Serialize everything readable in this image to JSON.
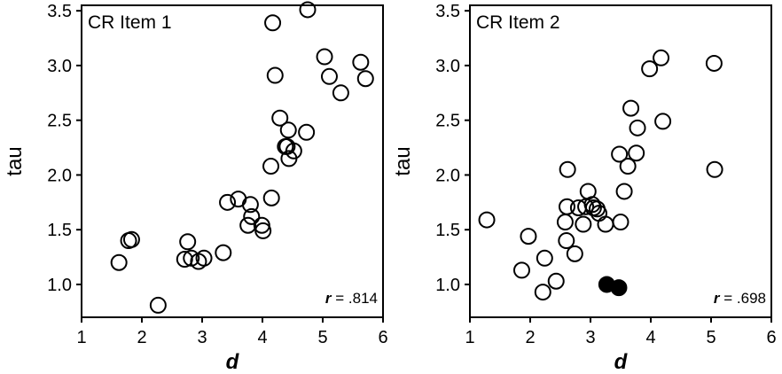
{
  "chart_data": [
    {
      "type": "scatter",
      "title": "CR Item 1",
      "xlabel": "d",
      "ylabel": "tau",
      "xlim": [
        1,
        6
      ],
      "ylim": [
        0.7,
        3.55
      ],
      "xticks": [
        "1",
        "2",
        "3",
        "4",
        "5",
        "6"
      ],
      "yticks": [
        "1.0",
        "1.5",
        "2.0",
        "2.5",
        "3.0",
        "3.5"
      ],
      "xtick_values": [
        1,
        2,
        3,
        4,
        5,
        6
      ],
      "ytick_values": [
        1.0,
        1.5,
        2.0,
        2.5,
        3.0,
        3.5
      ],
      "annotation_symbol": "r",
      "annotation_value": " = .814",
      "point_style": "open circle",
      "series": [
        {
          "points": [
            [
              1.62,
              1.2
            ],
            [
              1.78,
              1.4
            ],
            [
              1.83,
              1.41
            ],
            [
              2.27,
              0.81
            ],
            [
              2.71,
              1.23
            ],
            [
              2.76,
              1.39
            ],
            [
              2.82,
              1.24
            ],
            [
              2.94,
              1.21
            ],
            [
              3.03,
              1.24
            ],
            [
              3.35,
              1.29
            ],
            [
              3.42,
              1.75
            ],
            [
              3.6,
              1.78
            ],
            [
              3.76,
              1.54
            ],
            [
              3.8,
              1.73
            ],
            [
              3.82,
              1.62
            ],
            [
              3.99,
              1.54
            ],
            [
              4.01,
              1.49
            ],
            [
              4.14,
              2.08
            ],
            [
              4.15,
              1.79
            ],
            [
              4.17,
              3.39
            ],
            [
              4.21,
              2.91
            ],
            [
              4.29,
              2.52
            ],
            [
              4.38,
              2.26
            ],
            [
              4.41,
              2.26
            ],
            [
              4.43,
              2.41
            ],
            [
              4.44,
              2.15
            ],
            [
              4.52,
              2.22
            ],
            [
              4.73,
              2.39
            ],
            [
              4.75,
              3.51
            ],
            [
              5.03,
              3.08
            ],
            [
              5.11,
              2.9
            ],
            [
              5.3,
              2.75
            ],
            [
              5.63,
              3.03
            ],
            [
              5.71,
              2.88
            ]
          ],
          "filled": false
        }
      ]
    },
    {
      "type": "scatter",
      "title": "CR Item 2",
      "xlabel": "d",
      "ylabel": "tau",
      "xlim": [
        1,
        6
      ],
      "ylim": [
        0.7,
        3.55
      ],
      "xticks": [
        "1",
        "2",
        "3",
        "4",
        "5",
        "6"
      ],
      "yticks": [
        "1.0",
        "1.5",
        "2.0",
        "2.5",
        "3.0",
        "3.5"
      ],
      "xtick_values": [
        1,
        2,
        3,
        4,
        5,
        6
      ],
      "ytick_values": [
        1.0,
        1.5,
        2.0,
        2.5,
        3.0,
        3.5
      ],
      "annotation_symbol": "r",
      "annotation_value": " = .698",
      "point_style": "open and filled circles",
      "series": [
        {
          "points": [
            [
              1.28,
              1.59
            ],
            [
              1.86,
              1.13
            ],
            [
              1.97,
              1.44
            ],
            [
              2.21,
              0.93
            ],
            [
              2.24,
              1.24
            ],
            [
              2.43,
              1.03
            ],
            [
              2.58,
              1.57
            ],
            [
              2.6,
              1.4
            ],
            [
              2.61,
              1.71
            ],
            [
              2.62,
              2.05
            ],
            [
              2.74,
              1.28
            ],
            [
              2.8,
              1.7
            ],
            [
              2.88,
              1.55
            ],
            [
              2.92,
              1.71
            ],
            [
              2.96,
              1.85
            ],
            [
              3.03,
              1.73
            ],
            [
              3.05,
              1.7
            ],
            [
              3.11,
              1.69
            ],
            [
              3.14,
              1.65
            ],
            [
              3.25,
              1.55
            ],
            [
              3.48,
              2.19
            ],
            [
              3.5,
              1.57
            ],
            [
              3.56,
              1.85
            ],
            [
              3.62,
              2.08
            ],
            [
              3.67,
              2.61
            ],
            [
              3.76,
              2.2
            ],
            [
              3.78,
              2.43
            ],
            [
              3.98,
              2.97
            ],
            [
              4.17,
              3.07
            ],
            [
              4.2,
              2.49
            ],
            [
              5.05,
              3.02
            ],
            [
              5.06,
              2.05
            ]
          ],
          "filled": false
        },
        {
          "points": [
            [
              3.27,
              1.0
            ],
            [
              3.47,
              0.97
            ]
          ],
          "filled": true
        }
      ]
    }
  ]
}
